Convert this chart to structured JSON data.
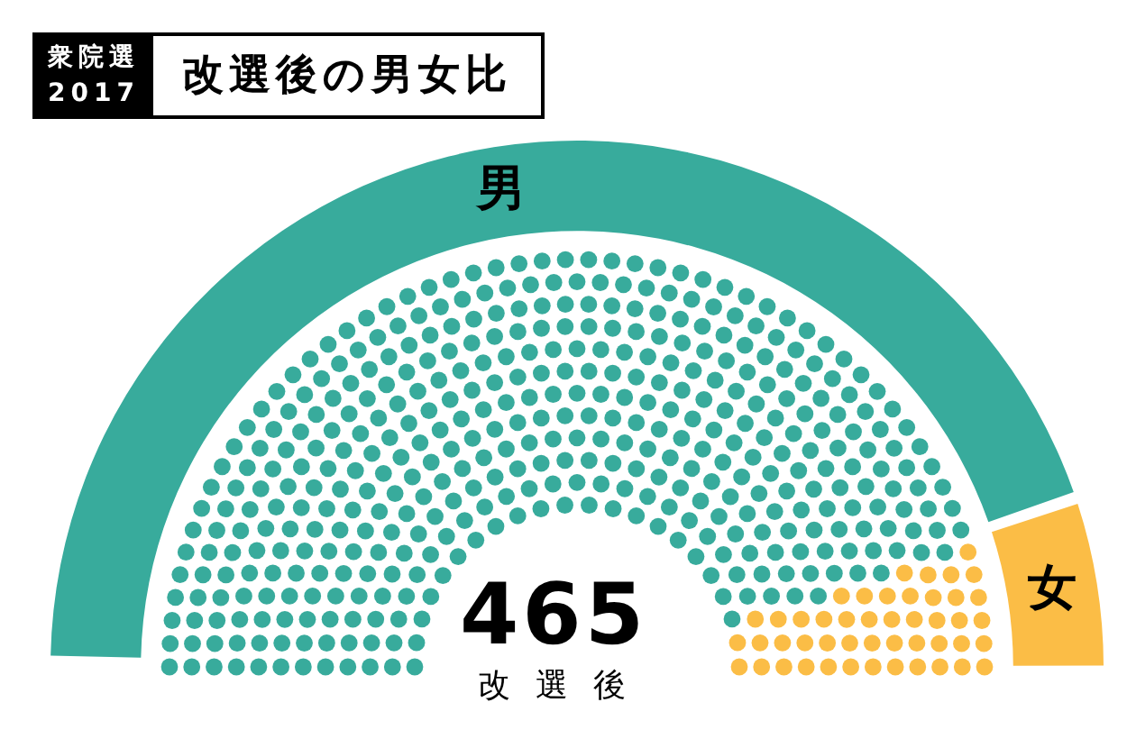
{
  "chart_data": {
    "type": "donut",
    "title": "改選後の男女比",
    "subtitle": "衆院選 2017",
    "categories": [
      "男",
      "女"
    ],
    "values": [
      89.9,
      10.1
    ],
    "colors": [
      "#38ab9c",
      "#fbbd46"
    ],
    "annotations": [
      "465",
      "改選後"
    ]
  }
}
